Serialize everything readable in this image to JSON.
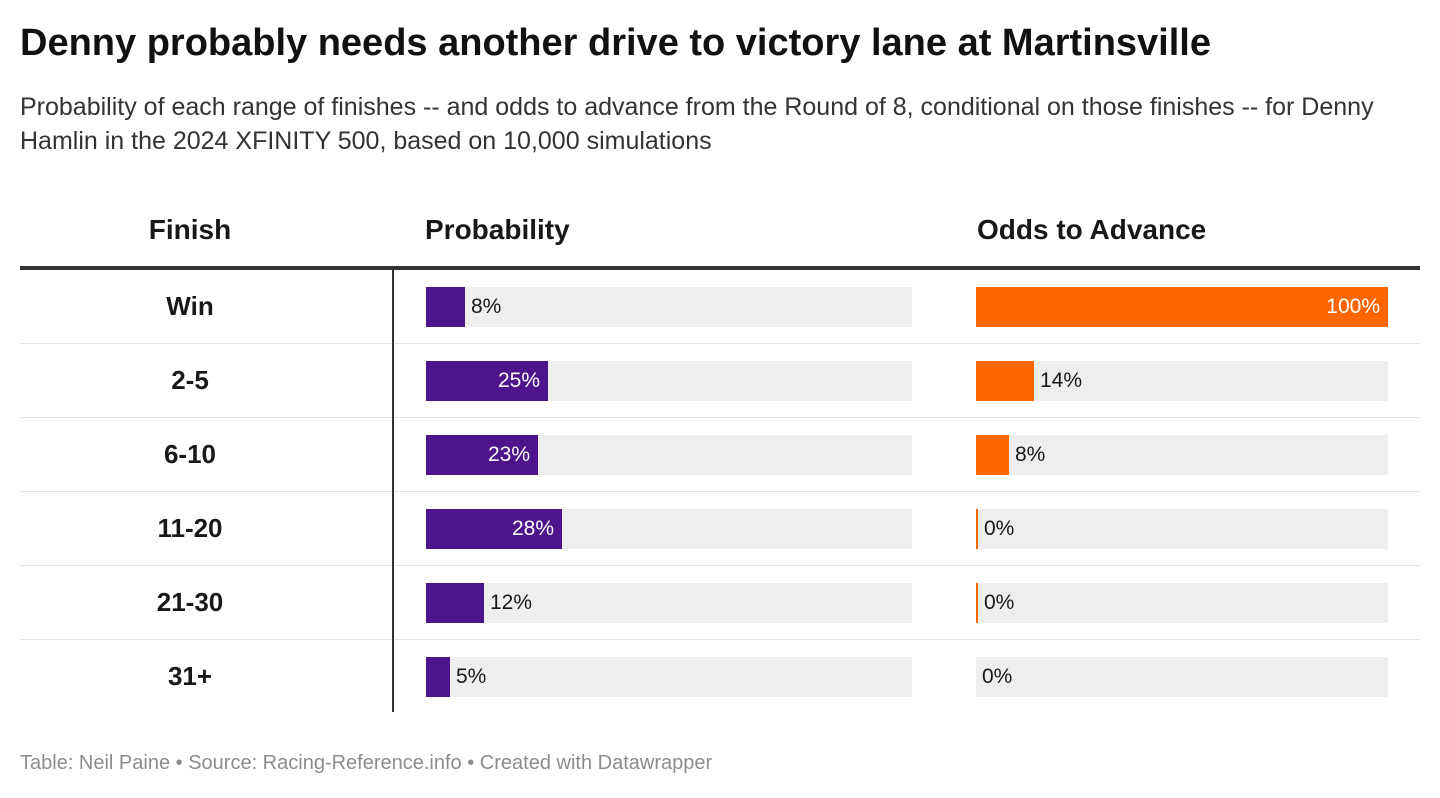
{
  "title": "Denny probably needs another drive to victory lane at Martinsville",
  "subtitle": "Probability of each range of finishes -- and odds to advance from the Round of 8, conditional on those finishes -- for Denny Hamlin in the 2024 XFINITY 500, based on 10,000 simulations",
  "headers": {
    "finish": "Finish",
    "probability": "Probability",
    "odds": "Odds to Advance"
  },
  "footer": "Table: Neil Paine • Source: Racing-Reference.info • Created with Datawrapper",
  "colors": {
    "probability_bar": "#4e148c",
    "odds_bar": "#ff6600",
    "track": "#eeeeee"
  },
  "chart_data": {
    "type": "table",
    "columns": [
      "Finish",
      "Probability",
      "Odds to Advance"
    ],
    "rows": [
      {
        "finish": "Win",
        "probability": 8,
        "probability_label": "8%",
        "odds": 100,
        "odds_label": "100%"
      },
      {
        "finish": "2-5",
        "probability": 25,
        "probability_label": "25%",
        "odds": 14,
        "odds_label": "14%"
      },
      {
        "finish": "6-10",
        "probability": 23,
        "probability_label": "23%",
        "odds": 8,
        "odds_label": "8%"
      },
      {
        "finish": "11-20",
        "probability": 28,
        "probability_label": "28%",
        "odds": 0.4,
        "odds_label": "0%"
      },
      {
        "finish": "21-30",
        "probability": 12,
        "probability_label": "12%",
        "odds": 0.4,
        "odds_label": "0%"
      },
      {
        "finish": "31+",
        "probability": 5,
        "probability_label": "5%",
        "odds": 0,
        "odds_label": "0%"
      }
    ],
    "probability_max": 100,
    "odds_max": 100
  }
}
